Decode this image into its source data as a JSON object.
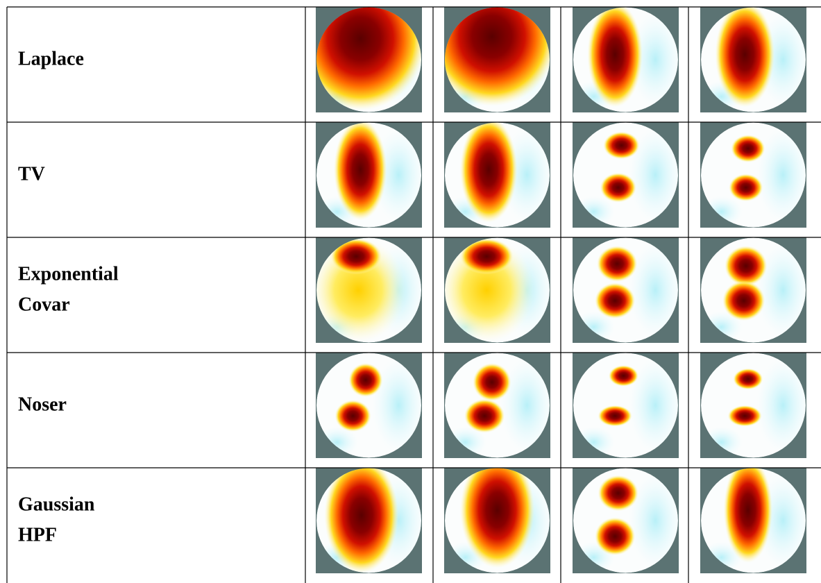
{
  "table": {
    "rows": [
      {
        "label": [
          "Laplace"
        ]
      },
      {
        "label": [
          "TV"
        ]
      },
      {
        "label": [
          "Exponential",
          "Covar"
        ]
      },
      {
        "label": [
          "Noser"
        ]
      },
      {
        "label": [
          "Gaussian",
          "HPF"
        ]
      }
    ]
  }
}
